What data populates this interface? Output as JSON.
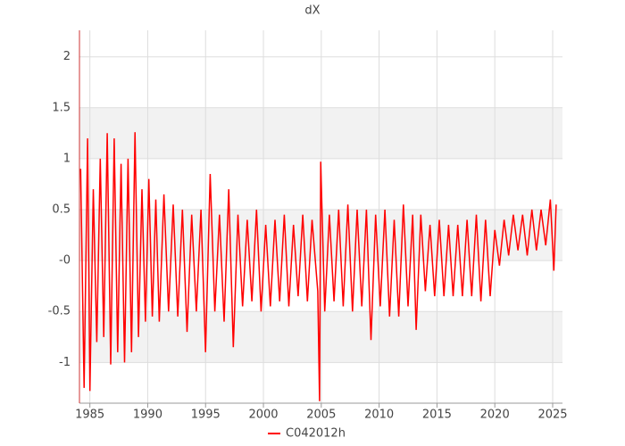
{
  "chart_data": {
    "type": "line",
    "title": "dX",
    "x": [
      1984.2,
      1984.5,
      1984.8,
      1985.0,
      1985.3,
      1985.6,
      1985.9,
      1986.2,
      1986.5,
      1986.8,
      1987.1,
      1987.4,
      1987.7,
      1988.0,
      1988.3,
      1988.6,
      1988.9,
      1989.2,
      1989.5,
      1989.8,
      1990.1,
      1990.4,
      1990.7,
      1991.0,
      1991.4,
      1991.8,
      1992.2,
      1992.6,
      1993.0,
      1993.4,
      1993.8,
      1994.2,
      1994.6,
      1995.0,
      1995.4,
      1995.8,
      1996.2,
      1996.6,
      1997.0,
      1997.4,
      1997.8,
      1998.2,
      1998.6,
      1999.0,
      1999.4,
      1999.8,
      2000.2,
      2000.6,
      2001.0,
      2001.4,
      2001.8,
      2002.2,
      2002.6,
      2003.0,
      2003.4,
      2003.8,
      2004.2,
      2004.7,
      2004.85,
      2004.95,
      2005.3,
      2005.7,
      2006.1,
      2006.5,
      2006.9,
      2007.3,
      2007.7,
      2008.1,
      2008.5,
      2008.9,
      2009.3,
      2009.7,
      2010.1,
      2010.5,
      2010.9,
      2011.3,
      2011.7,
      2012.1,
      2012.5,
      2012.9,
      2013.2,
      2013.6,
      2014.0,
      2014.4,
      2014.8,
      2015.2,
      2015.6,
      2016.0,
      2016.4,
      2016.8,
      2017.2,
      2017.6,
      2018.0,
      2018.4,
      2018.8,
      2019.2,
      2019.6,
      2020.0,
      2020.4,
      2020.8,
      2021.2,
      2021.6,
      2022.0,
      2022.4,
      2022.8,
      2023.2,
      2023.6,
      2024.0,
      2024.4,
      2024.8,
      2025.1,
      2025.3
    ],
    "series": [
      {
        "name": "C042012h",
        "color": "#ff0000",
        "values": [
          0.9,
          -1.25,
          1.2,
          -1.28,
          0.7,
          -0.8,
          1.0,
          -0.75,
          1.25,
          -1.02,
          1.2,
          -0.9,
          0.95,
          -1.0,
          1.0,
          -0.9,
          1.26,
          -0.75,
          0.7,
          -0.6,
          0.8,
          -0.55,
          0.6,
          -0.6,
          0.65,
          -0.5,
          0.55,
          -0.55,
          0.5,
          -0.7,
          0.45,
          -0.5,
          0.5,
          -0.9,
          0.85,
          -0.5,
          0.45,
          -0.6,
          0.7,
          -0.85,
          0.45,
          -0.45,
          0.4,
          -0.4,
          0.5,
          -0.5,
          0.35,
          -0.45,
          0.4,
          -0.4,
          0.45,
          -0.45,
          0.35,
          -0.35,
          0.45,
          -0.4,
          0.4,
          -0.3,
          -1.38,
          0.97,
          -0.5,
          0.45,
          -0.4,
          0.5,
          -0.45,
          0.55,
          -0.5,
          0.5,
          -0.45,
          0.5,
          -0.78,
          0.45,
          -0.45,
          0.5,
          -0.55,
          0.4,
          -0.55,
          0.55,
          -0.45,
          0.45,
          -0.68,
          0.45,
          -0.3,
          0.35,
          -0.35,
          0.4,
          -0.35,
          0.35,
          -0.35,
          0.35,
          -0.35,
          0.4,
          -0.35,
          0.45,
          -0.4,
          0.4,
          -0.35,
          0.3,
          -0.05,
          0.4,
          0.05,
          0.45,
          0.1,
          0.45,
          0.05,
          0.5,
          0.1,
          0.5,
          0.15,
          0.6,
          -0.1,
          0.55
        ]
      }
    ],
    "xlim": [
      1984.1,
      2025.85
    ],
    "xticks": [
      1985,
      1990,
      1995,
      2000,
      2005,
      2010,
      2015,
      2020,
      2025
    ],
    "ylim": [
      -1.4,
      2.26
    ],
    "yticks": [
      -1,
      -0.5,
      {
        "value": 0,
        "label": "-0"
      },
      0.5,
      1,
      1.5,
      2
    ],
    "grid": true
  }
}
